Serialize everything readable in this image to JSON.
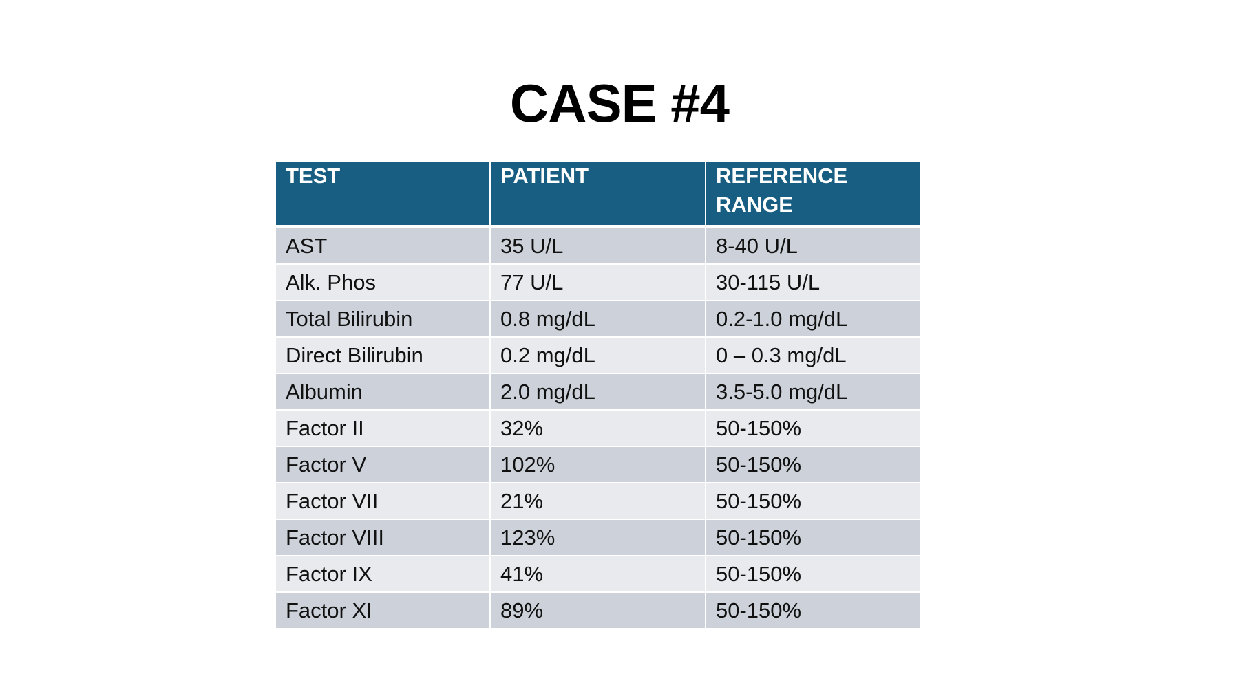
{
  "slide": {
    "title": "CASE #4"
  },
  "table": {
    "headers": [
      "TEST",
      "PATIENT",
      "REFERENCE RANGE"
    ],
    "rows": [
      [
        "AST",
        "35 U/L",
        "8-40 U/L"
      ],
      [
        "Alk. Phos",
        "77 U/L",
        "30-115 U/L"
      ],
      [
        "Total Bilirubin",
        "0.8 mg/dL",
        "0.2-1.0 mg/dL"
      ],
      [
        "Direct Bilirubin",
        "0.2 mg/dL",
        "0 – 0.3 mg/dL"
      ],
      [
        "Albumin",
        "2.0 mg/dL",
        "3.5-5.0 mg/dL"
      ],
      [
        "Factor II",
        "32%",
        "50-150%"
      ],
      [
        "Factor V",
        "102%",
        "50-150%"
      ],
      [
        "Factor VII",
        "21%",
        "50-150%"
      ],
      [
        "Factor VIII",
        "123%",
        "50-150%"
      ],
      [
        "Factor IX",
        "41%",
        "50-150%"
      ],
      [
        "Factor XI",
        "89%",
        "50-150%"
      ]
    ]
  },
  "colors": {
    "header_bg": "#175e82",
    "row_odd_bg": "#cdd2da",
    "row_even_bg": "#e8eaee"
  }
}
